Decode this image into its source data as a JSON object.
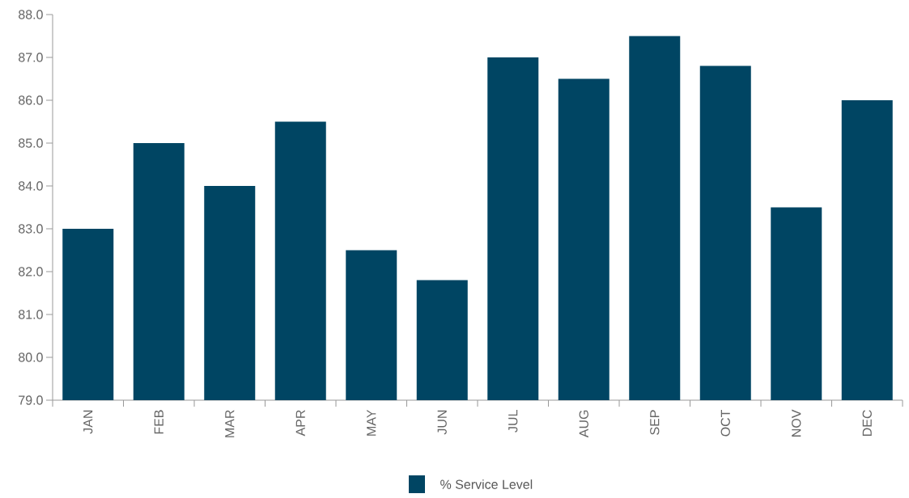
{
  "chart_data": {
    "type": "bar",
    "categories": [
      "JAN",
      "FEB",
      "MAR",
      "APR",
      "MAY",
      "JUN",
      "JUL",
      "AUG",
      "SEP",
      "OCT",
      "NOV",
      "DEC"
    ],
    "series": [
      {
        "name": "% Service Level",
        "color": "#004563",
        "values": [
          83.0,
          85.0,
          84.0,
          85.5,
          82.5,
          81.8,
          87.0,
          86.5,
          87.5,
          86.8,
          83.5,
          86.0
        ]
      }
    ],
    "ylim": [
      79,
      88
    ],
    "yticks": [
      {
        "value": 79,
        "label": "79.0"
      },
      {
        "value": 80,
        "label": "80.0"
      },
      {
        "value": 81,
        "label": "81.0"
      },
      {
        "value": 82,
        "label": "82.0"
      },
      {
        "value": 83,
        "label": "83.0"
      },
      {
        "value": 84,
        "label": "84.0"
      },
      {
        "value": 85,
        "label": "85.0"
      },
      {
        "value": 86,
        "label": "86.0"
      },
      {
        "value": 87,
        "label": "87.0"
      },
      {
        "value": 88,
        "label": "88.0"
      }
    ],
    "grid": false,
    "legend": "bottom"
  }
}
